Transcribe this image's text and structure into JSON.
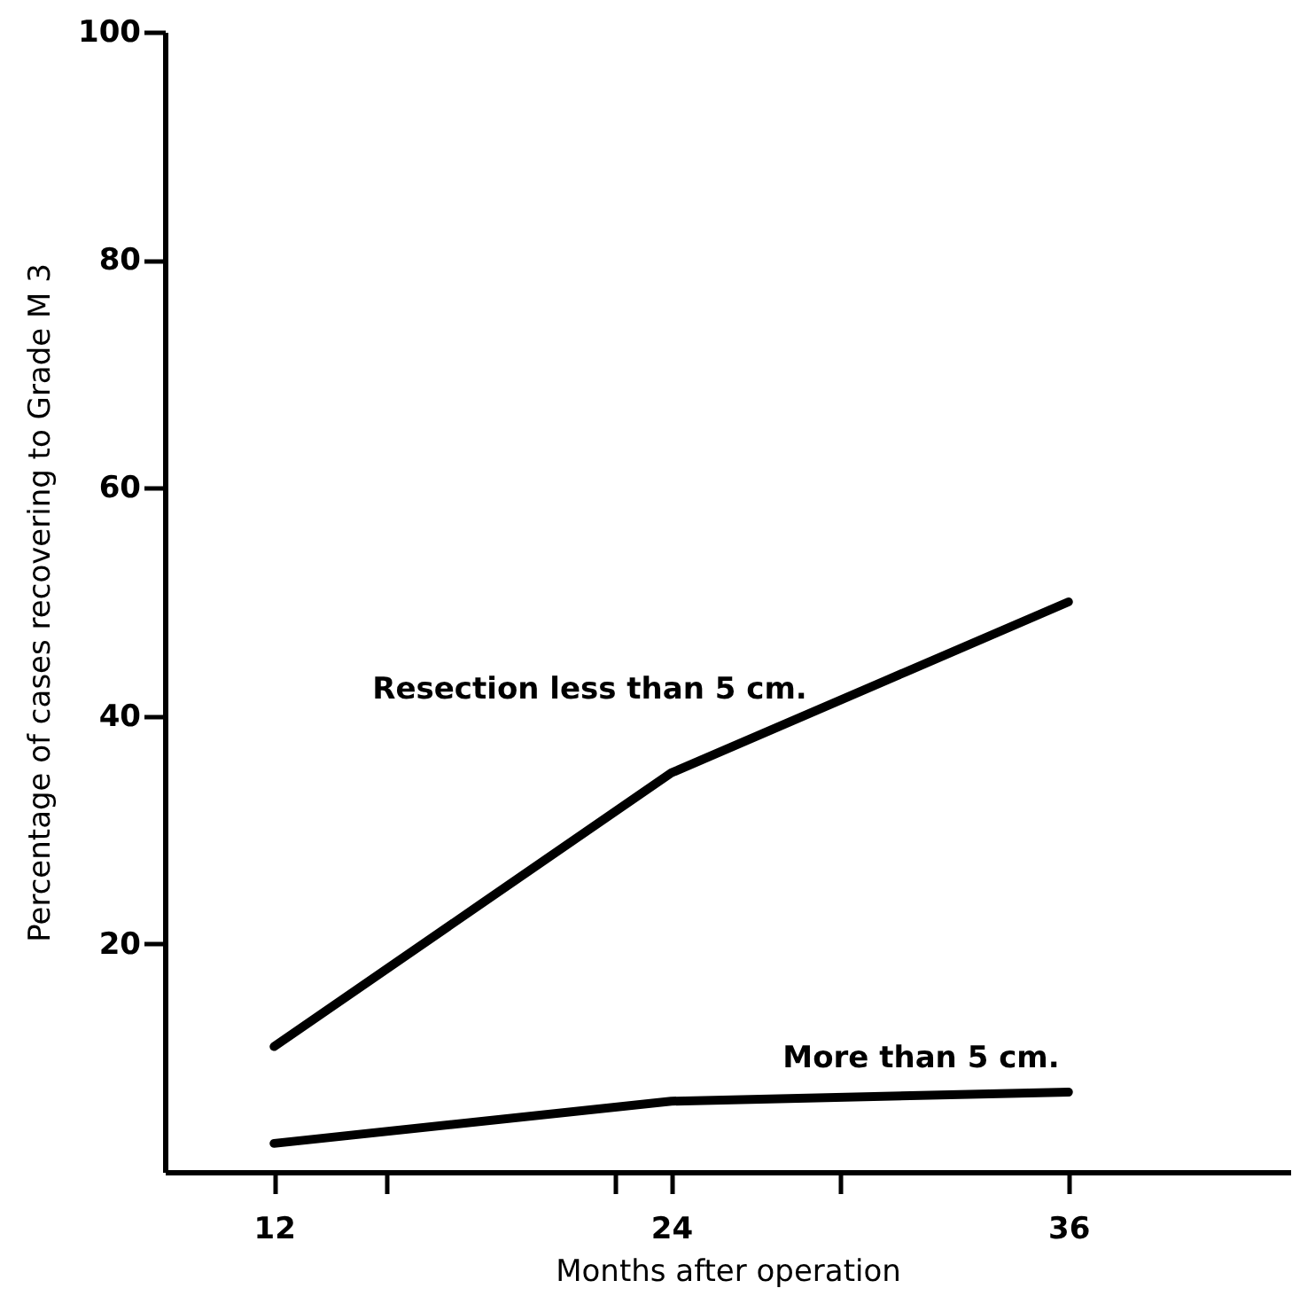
{
  "chart_data": {
    "type": "line",
    "xlabel": "Months after operation",
    "ylabel": "Percentage of cases recovering to Grade M 3",
    "x": [
      12,
      24,
      36
    ],
    "series": [
      {
        "name": "Resection less than 5 cm.",
        "color": "#000000",
        "values": [
          11,
          35,
          50
        ]
      },
      {
        "name": "More than 5 cm.",
        "color": "#000000",
        "values": [
          2.5,
          6.2,
          7
        ]
      }
    ],
    "xlim": [
      8.7,
      42.7
    ],
    "xticks": [
      12,
      {
        "value": 15.4,
        "label": null
      },
      {
        "value": 22.3,
        "label": null
      },
      24,
      {
        "value": 29.1,
        "label": null
      },
      36
    ],
    "ylim": [
      0,
      100
    ],
    "yticks": [
      20,
      40,
      60,
      80,
      100
    ],
    "grid": false,
    "marker": "none",
    "line_style": "solid"
  }
}
